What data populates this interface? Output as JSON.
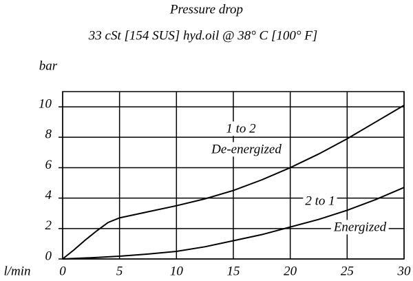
{
  "chart_data": {
    "type": "line",
    "title": "Pressure   drop",
    "subtitle": "33 cSt [154 SUS] hyd.oil @ 38° C [100° F]",
    "x_label": "l/min",
    "y_label": "bar",
    "xlim": [
      0,
      30
    ],
    "xticks": [
      0,
      5,
      10,
      15,
      20,
      25,
      30
    ],
    "ylim": [
      0,
      11
    ],
    "yticks": [
      0,
      2,
      4,
      6,
      8,
      10
    ],
    "grid": true,
    "series": [
      {
        "name": "1 to 2",
        "label": "De-energized",
        "color": "#000000",
        "x": [
          0,
          1,
          2,
          3,
          4,
          5,
          7.5,
          10,
          12.5,
          15,
          17.5,
          20,
          22.5,
          25,
          27.5,
          30
        ],
        "values": [
          0,
          0.6,
          1.25,
          1.85,
          2.4,
          2.7,
          3.1,
          3.5,
          3.95,
          4.5,
          5.2,
          6.0,
          6.9,
          7.9,
          9.0,
          10.1
        ]
      },
      {
        "name": "2 to 1",
        "label": "Energized",
        "color": "#000000",
        "x": [
          0,
          2.5,
          5,
          7.5,
          10,
          12.5,
          15,
          17.5,
          20,
          22.5,
          25,
          27.5,
          30
        ],
        "values": [
          0,
          0.08,
          0.18,
          0.32,
          0.5,
          0.8,
          1.2,
          1.6,
          2.1,
          2.6,
          3.2,
          3.9,
          4.7
        ]
      }
    ]
  }
}
